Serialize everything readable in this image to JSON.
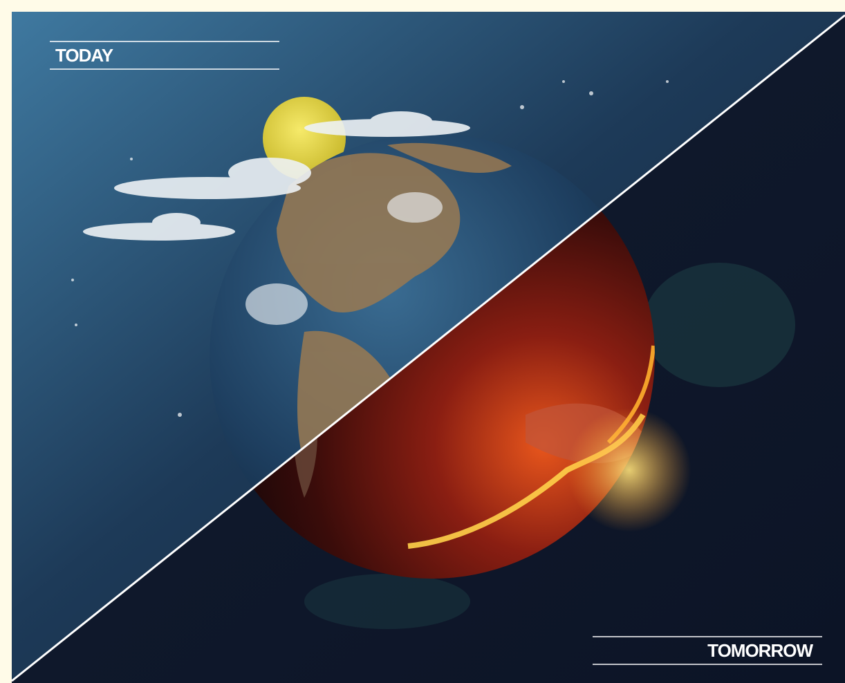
{
  "labels": {
    "today": "TODAY",
    "tomorrow": "TOMORROW"
  }
}
